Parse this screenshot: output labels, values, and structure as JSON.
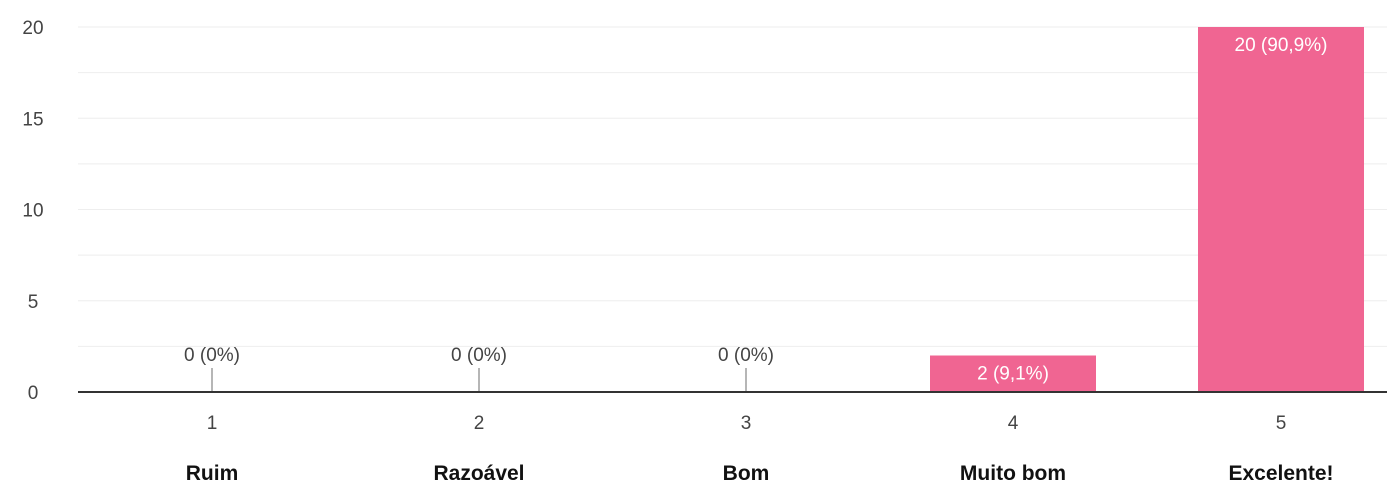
{
  "chart_data": {
    "type": "bar",
    "categories": [
      "1",
      "2",
      "3",
      "4",
      "5"
    ],
    "category_descriptions": [
      "Ruim",
      "Razoável",
      "Bom",
      "Muito bom",
      "Excelente!"
    ],
    "values": [
      0,
      0,
      0,
      2,
      20
    ],
    "data_labels": [
      "0 (0%)",
      "0 (0%)",
      "0 (0%)",
      "2 (9,1%)",
      "20 (90,9%)"
    ],
    "ylim": [
      0,
      20
    ],
    "yticks": [
      0,
      5,
      10,
      15,
      20
    ],
    "grid": true,
    "bar_color": "#f06592",
    "axis_color": "#333333",
    "grid_color": "#eeeeee",
    "label_inside_color": "#ffffff",
    "label_outside_color": "#444444"
  }
}
